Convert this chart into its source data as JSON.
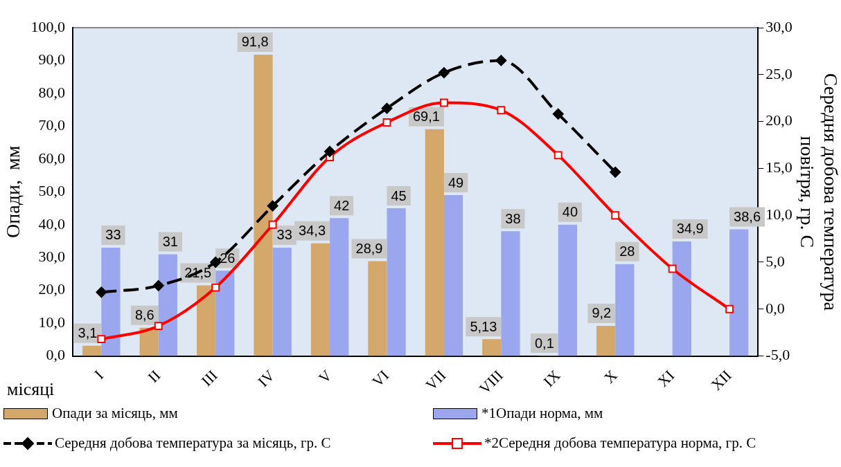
{
  "chart_data": {
    "type": "bar",
    "xlabel": "місяці",
    "ylabel": "Опади,  мм",
    "y2label": "Середня добова температура повітря, гр. С",
    "categories": [
      "I",
      "II",
      "III",
      "IV",
      "V",
      "VI",
      "VII",
      "VIII",
      "IX",
      "X",
      "XI",
      "XII"
    ],
    "series": [
      {
        "name": "Опади за місяць, мм",
        "color": "#d4a86a",
        "values": [
          3.1,
          8.6,
          21.5,
          91.8,
          34.3,
          28.9,
          69.1,
          5.13,
          0.1,
          9.2,
          null,
          null
        ],
        "value_labels": [
          "3,1",
          "8,6",
          "21,5",
          "91,8",
          "34,3",
          "28,9",
          "69,1",
          "5,13",
          "0,1",
          "9,2",
          null,
          null
        ]
      },
      {
        "name": "*1Опади норма, мм",
        "color": "#9aa6ee",
        "values": [
          33,
          31,
          26,
          33,
          42,
          45,
          49,
          38,
          40,
          28,
          34.9,
          38.6
        ],
        "value_labels": [
          "33",
          "31",
          "26",
          "33",
          "42",
          "45",
          "49",
          "38",
          "40",
          "28",
          "34,9",
          "38,6"
        ]
      },
      {
        "name": "Середня добова температура за місяць, гр. С",
        "type": "line",
        "axis": "y2",
        "color": "#000000",
        "marker": "diamond",
        "line_style": "dashed",
        "values": [
          1.8,
          2.5,
          5.0,
          11.0,
          16.8,
          21.4,
          25.2,
          26.5,
          20.8,
          14.6,
          null,
          null
        ]
      },
      {
        "name": "*2Середня добова температура норма, гр. С",
        "type": "line",
        "axis": "y2",
        "color": "#ff0000",
        "marker": "square",
        "line_style": "solid",
        "values": [
          -3.2,
          -1.8,
          2.3,
          9.0,
          16.2,
          19.9,
          22.0,
          21.2,
          16.4,
          10.0,
          4.3,
          0.0
        ]
      }
    ],
    "ylim": [
      0,
      100
    ],
    "yticks": [
      {
        "value": 0,
        "label": "0,0"
      },
      {
        "value": 10,
        "label": "10,0"
      },
      {
        "value": 20,
        "label": "20,0"
      },
      {
        "value": 30,
        "label": "30,0"
      },
      {
        "value": 40,
        "label": "40,0"
      },
      {
        "value": 50,
        "label": "50,0"
      },
      {
        "value": 60,
        "label": "60,0"
      },
      {
        "value": 70,
        "label": "70,0"
      },
      {
        "value": 80,
        "label": "80,0"
      },
      {
        "value": 90,
        "label": "90,0"
      },
      {
        "value": 100,
        "label": "100,0"
      }
    ],
    "y2lim": [
      -5,
      30
    ],
    "y2ticks": [
      {
        "value": -5,
        "label": "-5,0"
      },
      {
        "value": 0,
        "label": "0,0"
      },
      {
        "value": 5,
        "label": "5,0"
      },
      {
        "value": 10,
        "label": "10,0"
      },
      {
        "value": 15,
        "label": "15,0"
      },
      {
        "value": 20,
        "label": "20,0"
      },
      {
        "value": 25,
        "label": "25,0"
      },
      {
        "value": 30,
        "label": "30,0"
      }
    ],
    "grid": false,
    "legend": "bottom"
  }
}
